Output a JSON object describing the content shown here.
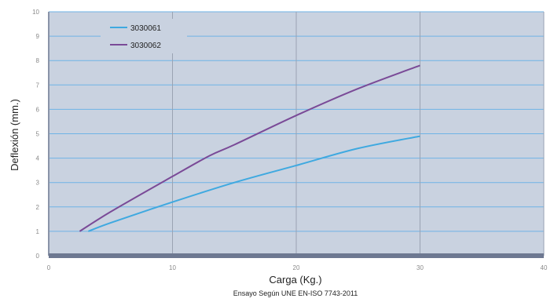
{
  "chart_data": {
    "type": "line",
    "xlabel": "Carga (Kg.)",
    "ylabel": "Deflexión (mm.)",
    "note": "Ensayo Según UNE EN-ISO 7743-2011",
    "xlim": [
      0,
      40
    ],
    "ylim": [
      0,
      10
    ],
    "xticks": [
      0,
      10,
      20,
      30,
      40
    ],
    "yticks": [
      0,
      1,
      2,
      3,
      4,
      5,
      6,
      7,
      8,
      9,
      10
    ],
    "grid": true,
    "legend_position": "top-left",
    "colors": {
      "plot_background": "#c9d2e0",
      "gridline": "#6fb3e6",
      "vertical_gridline": "#9aa3b3",
      "floor": "#6d7891"
    },
    "series": [
      {
        "name": "3030061",
        "color": "#3fa9e0",
        "points": [
          [
            3.2,
            1.0
          ],
          [
            5,
            1.35
          ],
          [
            10,
            2.2
          ],
          [
            15,
            3.0
          ],
          [
            20,
            3.7
          ],
          [
            25,
            4.4
          ],
          [
            30,
            4.9
          ]
        ]
      },
      {
        "name": "3030062",
        "color": "#7a4a97",
        "points": [
          [
            2.5,
            1.0
          ],
          [
            5,
            1.8
          ],
          [
            10,
            3.25
          ],
          [
            13,
            4.1
          ],
          [
            15,
            4.55
          ],
          [
            20,
            5.75
          ],
          [
            25,
            6.85
          ],
          [
            30,
            7.8
          ]
        ]
      }
    ]
  }
}
